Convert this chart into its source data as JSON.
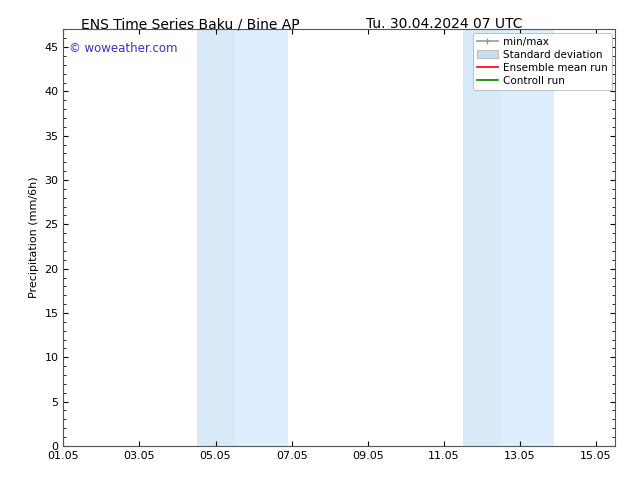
{
  "title_left": "ENS Time Series Baku / Bine AP",
  "title_right": "Tu. 30.04.2024 07 UTC",
  "ylabel": "Precipitation (mm/6h)",
  "ylim": [
    0,
    47
  ],
  "yticks": [
    0,
    5,
    10,
    15,
    20,
    25,
    30,
    35,
    40,
    45
  ],
  "xtick_labels": [
    "01.05",
    "03.05",
    "05.05",
    "07.05",
    "09.05",
    "11.05",
    "13.05",
    "15.05"
  ],
  "xtick_days_from_may1": [
    0,
    2,
    4,
    6,
    8,
    10,
    12,
    14
  ],
  "xlim_days": [
    0,
    14.5
  ],
  "shaded_regions": [
    {
      "start": 3.5,
      "end": 4.5,
      "color": "#d8eaf8"
    },
    {
      "start": 4.5,
      "end": 5.9,
      "color": "#ddeeff"
    },
    {
      "start": 10.5,
      "end": 11.5,
      "color": "#d8eaf8"
    },
    {
      "start": 11.5,
      "end": 12.9,
      "color": "#ddeeff"
    }
  ],
  "watermark_text": "© woweather.com",
  "watermark_color": "#3333cc",
  "legend_items": [
    {
      "label": "min/max",
      "color": "#999999"
    },
    {
      "label": "Standard deviation",
      "color": "#c8dff0"
    },
    {
      "label": "Ensemble mean run",
      "color": "#ff0000"
    },
    {
      "label": "Controll run",
      "color": "#008000"
    }
  ],
  "bg_color": "#ffffff",
  "title_fontsize": 10,
  "tick_fontsize": 8,
  "label_fontsize": 8,
  "legend_fontsize": 7.5
}
